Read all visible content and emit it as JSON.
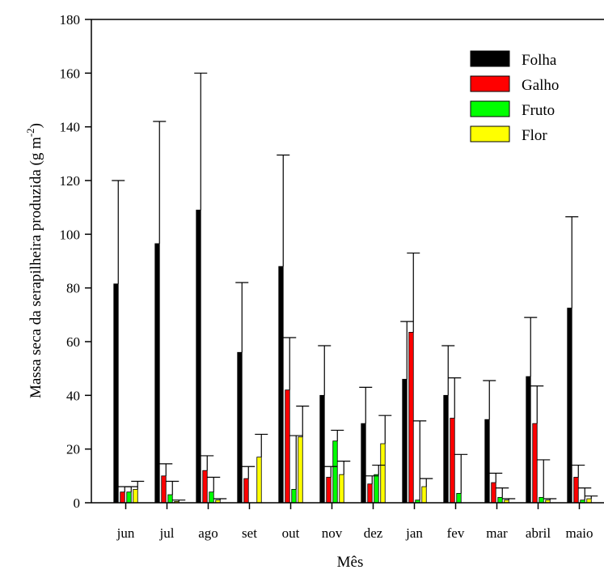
{
  "chart_data": {
    "type": "bar",
    "xlabel": "Mês",
    "ylabel_main": "Massa seca da serapilheira produzida (g m",
    "ylabel_sup": "-2",
    "ylabel_close": ")",
    "ylim": [
      0,
      180
    ],
    "yticks": [
      0,
      20,
      40,
      60,
      80,
      100,
      120,
      140,
      160,
      180
    ],
    "grid": false,
    "legend_position": "top-right",
    "error_bars": "upper",
    "categories": [
      "jun",
      "jul",
      "ago",
      "set",
      "out",
      "nov",
      "dez",
      "jan",
      "fev",
      "mar",
      "abril",
      "maio"
    ],
    "series": [
      {
        "name": "Folha",
        "color": "#000000",
        "values": [
          81.5,
          96.5,
          109,
          56,
          88,
          40,
          29.5,
          46,
          40,
          31,
          47,
          72.5
        ],
        "errors": [
          38.5,
          45.5,
          51,
          26,
          41.5,
          18.5,
          13.5,
          21.5,
          18.5,
          14.5,
          22,
          34
        ]
      },
      {
        "name": "Galho",
        "color": "#ff0000",
        "values": [
          4,
          10,
          12,
          9,
          42,
          9.5,
          7,
          63.5,
          31.5,
          7.5,
          29.5,
          9.5
        ],
        "errors": [
          2,
          4.5,
          5.5,
          4.5,
          19.5,
          4,
          3,
          29.5,
          15,
          3.5,
          14,
          4.5
        ]
      },
      {
        "name": "Fruto",
        "color": "#00ff00",
        "values": [
          4,
          3,
          4,
          0,
          5,
          23,
          10.5,
          1,
          3.5,
          2,
          2,
          1
        ],
        "errors": [
          2,
          5,
          5.5,
          0,
          20,
          4,
          3.5,
          29.5,
          14.5,
          3.5,
          14,
          4.5
        ]
      },
      {
        "name": "Flor",
        "color": "#ffff00",
        "values": [
          5,
          0.5,
          1,
          17,
          24.5,
          10.5,
          22,
          6,
          0,
          1,
          1,
          1.5
        ],
        "errors": [
          3,
          0.5,
          0.5,
          8.5,
          11.5,
          5,
          10.5,
          3,
          0,
          0.5,
          0.5,
          1
        ]
      }
    ]
  }
}
